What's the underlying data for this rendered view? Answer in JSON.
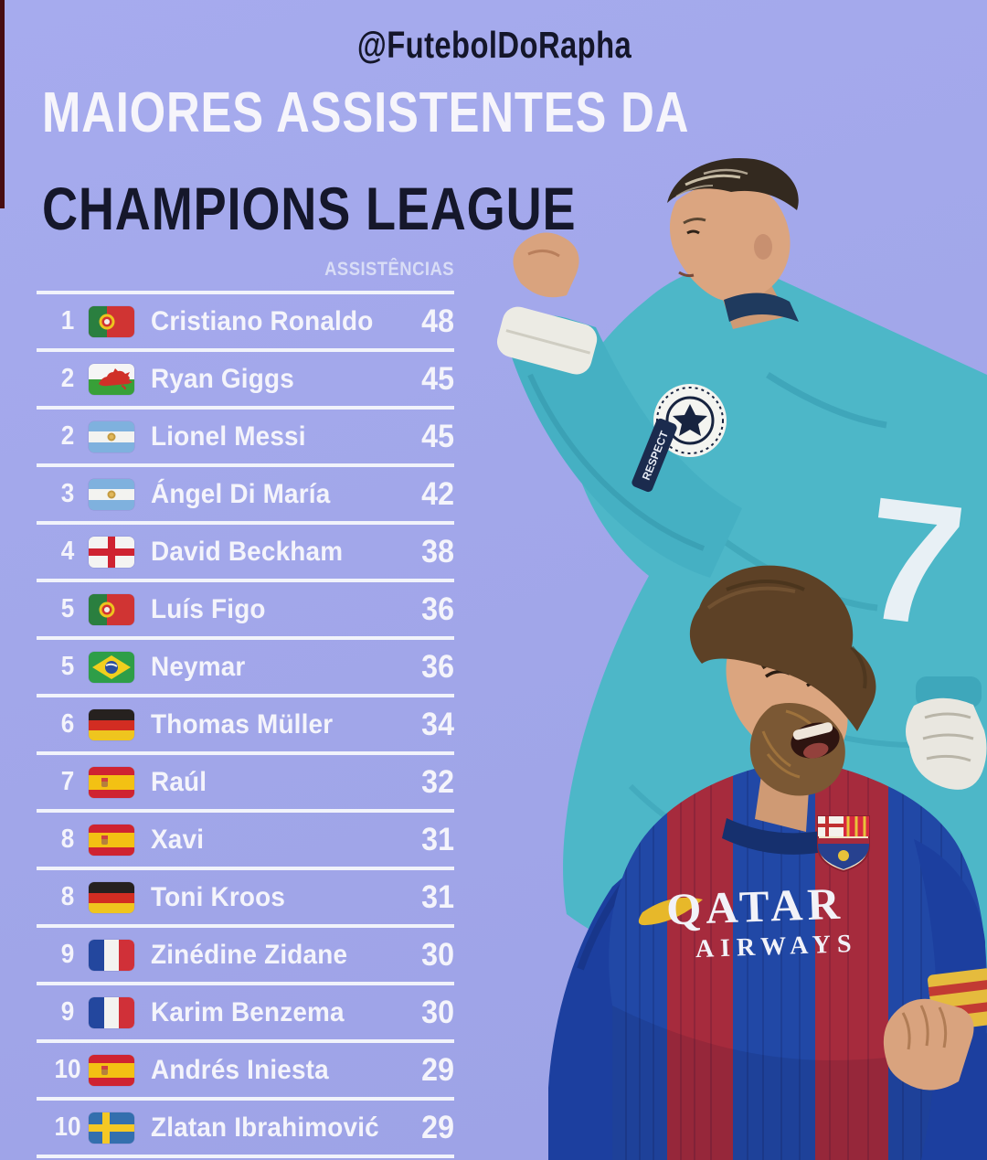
{
  "page": {
    "background_color": "#a1a6e9",
    "accent_strip_color": "#470d12",
    "divider_color": "#f1f3fb"
  },
  "header": {
    "handle": "@FutebolDoRapha",
    "title_line1": "MAIORES ASSISTENTES DA",
    "title_line2": "CHAMPIONS LEAGUE",
    "title_line1_color": "#f6f5fb",
    "title_line2_color": "#15172b"
  },
  "table": {
    "assists_header": "ASSISTÊNCIAS",
    "rows": [
      {
        "rank": "1",
        "country": "portugal",
        "flag_icon": "portugal-flag-icon",
        "player": "Cristiano Ronaldo",
        "assists": "48"
      },
      {
        "rank": "2",
        "country": "wales",
        "flag_icon": "wales-flag-icon",
        "player": "Ryan Giggs",
        "assists": "45"
      },
      {
        "rank": "2",
        "country": "argentina",
        "flag_icon": "argentina-flag-icon",
        "player": "Lionel Messi",
        "assists": "45"
      },
      {
        "rank": "3",
        "country": "argentina",
        "flag_icon": "argentina-flag-icon",
        "player": "Ángel Di María",
        "assists": "42"
      },
      {
        "rank": "4",
        "country": "england",
        "flag_icon": "england-flag-icon",
        "player": "David Beckham",
        "assists": "38"
      },
      {
        "rank": "5",
        "country": "portugal",
        "flag_icon": "portugal-flag-icon",
        "player": "Luís Figo",
        "assists": "36"
      },
      {
        "rank": "5",
        "country": "brazil",
        "flag_icon": "brazil-flag-icon",
        "player": "Neymar",
        "assists": "36"
      },
      {
        "rank": "6",
        "country": "germany",
        "flag_icon": "germany-flag-icon",
        "player": "Thomas Müller",
        "assists": "34"
      },
      {
        "rank": "7",
        "country": "spain",
        "flag_icon": "spain-flag-icon",
        "player": "Raúl",
        "assists": "32"
      },
      {
        "rank": "8",
        "country": "spain",
        "flag_icon": "spain-flag-icon",
        "player": "Xavi",
        "assists": "31"
      },
      {
        "rank": "8",
        "country": "germany",
        "flag_icon": "germany-flag-icon",
        "player": "Toni Kroos",
        "assists": "31"
      },
      {
        "rank": "9",
        "country": "france",
        "flag_icon": "france-flag-icon",
        "player": "Zinédine Zidane",
        "assists": "30"
      },
      {
        "rank": "9",
        "country": "france",
        "flag_icon": "france-flag-icon",
        "player": "Karim Benzema",
        "assists": "30"
      },
      {
        "rank": "10",
        "country": "spain",
        "flag_icon": "spain-flag-icon",
        "player": "Andrés Iniesta",
        "assists": "29"
      },
      {
        "rank": "10",
        "country": "sweden",
        "flag_icon": "sweden-flag-icon",
        "player": "Zlatan Ibrahimović",
        "assists": "29"
      }
    ]
  },
  "images": {
    "ronaldo": {
      "description": "Cristiano Ronaldo celebrating, teal Real Madrid away kit, raised fist with white wrist tape",
      "kit_color": "#4db7c8",
      "shirt_number": "7",
      "badge_text": "RESPECT"
    },
    "messi": {
      "description": "Lionel Messi shouting, Barcelona blaugrana striped kit with captain armband",
      "stripe_blue": "#2148a6",
      "stripe_red": "#a62b3d",
      "sponsor_line1": "QATAR",
      "sponsor_line2": "AIRWAYS"
    }
  }
}
